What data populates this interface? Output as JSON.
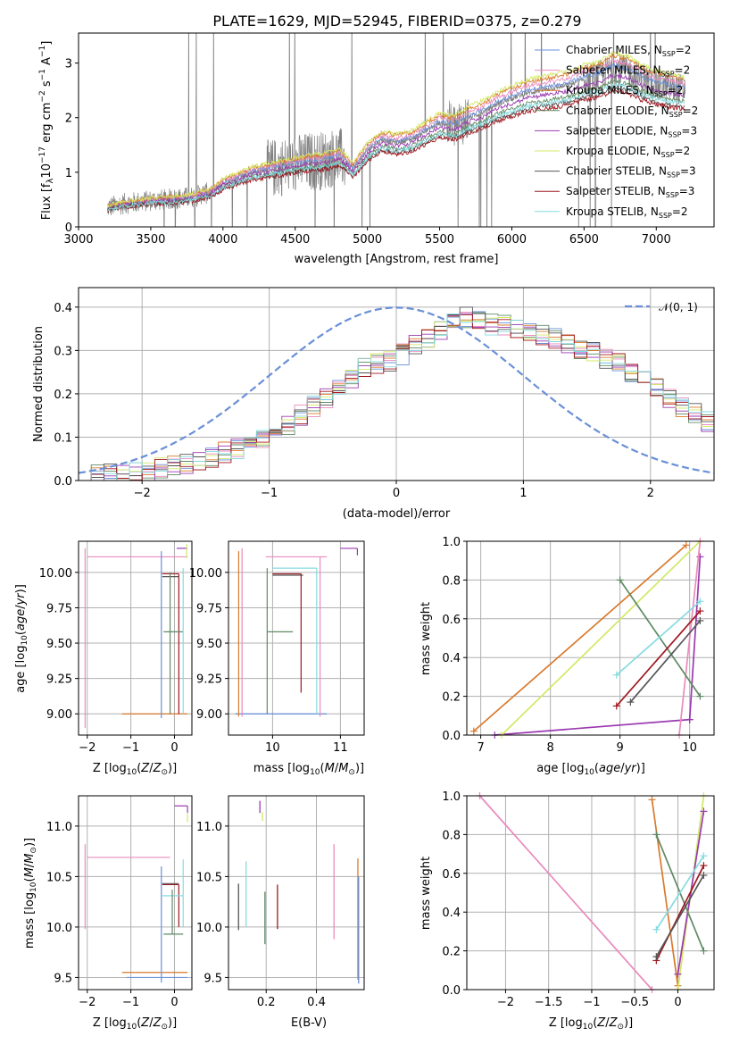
{
  "figure": {
    "title": "PLATE=1629, MJD=52945, FIBERID=0375, z=0.279"
  },
  "colors": {
    "Chabrier MILES": "#6a8fd8",
    "Salpeter MILES": "#e98bbd",
    "Kroupa MILES": "#d97a2d",
    "Chabrier ELODIE": "#5f8a64",
    "Salpeter ELODIE": "#9a3ab0",
    "Kroupa ELODIE": "#d3e865",
    "Chabrier STELIB": "#555555",
    "Salpeter STELIB": "#a01820",
    "Kroupa STELIB": "#86dbe0",
    "data": "#808080",
    "normal": "#6a8fd8"
  },
  "chart_data": [
    {
      "id": "spectrum",
      "type": "line",
      "title": "PLATE=1629, MJD=52945, FIBERID=0375, z=0.279",
      "xlabel": "wavelength [Angstrom, rest frame]",
      "ylabel": "Flux [f_λ 10^-17 erg cm^-2 s^-1 A^-1]",
      "xlim": [
        3000,
        7400
      ],
      "ylim": [
        0,
        3.55
      ],
      "xticks": [
        3000,
        3500,
        4000,
        4500,
        5000,
        5500,
        6000,
        6500,
        7000
      ],
      "yticks": [
        0,
        1,
        2,
        3
      ],
      "legend_position": "top-right",
      "grid": false,
      "legend": [
        "Chabrier MILES, N_SSP=2",
        "Salpeter MILES, N_SSP=2",
        "Kroupa MILES, N_SSP=2",
        "Chabrier ELODIE, N_SSP=2",
        "Salpeter ELODIE, N_SSP=3",
        "Kroupa ELODIE, N_SSP=2",
        "Chabrier STELIB, N_SSP=3",
        "Salpeter STELIB, N_SSP=3",
        "Kroupa STELIB, N_SSP=2"
      ],
      "continuum": {
        "x": [
          3200,
          3300,
          3400,
          3500,
          3600,
          3700,
          3800,
          3850,
          3900,
          3950,
          4000,
          4100,
          4200,
          4300,
          4400,
          4500,
          4600,
          4700,
          4800,
          4850,
          4900,
          5000,
          5100,
          5200,
          5300,
          5400,
          5500,
          5600,
          5700,
          5800,
          5900,
          6000,
          6100,
          6200,
          6300,
          6400,
          6500,
          6600,
          6700,
          6800,
          6900,
          7000,
          7100,
          7200
        ],
        "y": [
          0.35,
          0.42,
          0.45,
          0.48,
          0.5,
          0.52,
          0.55,
          0.6,
          0.62,
          0.7,
          0.8,
          0.9,
          1.0,
          1.05,
          1.1,
          1.15,
          1.2,
          1.22,
          1.3,
          1.2,
          1.05,
          1.4,
          1.6,
          1.55,
          1.6,
          1.75,
          1.9,
          1.85,
          2.0,
          2.1,
          2.25,
          2.35,
          2.45,
          2.5,
          2.55,
          2.6,
          2.7,
          2.75,
          2.9,
          2.85,
          2.7,
          2.6,
          2.55,
          2.5
        ]
      },
      "model_offsets": {
        "Chabrier MILES": 0.02,
        "Salpeter MILES": 0.05,
        "Kroupa MILES": 0.08,
        "Chabrier ELODIE": -0.08,
        "Salpeter ELODIE": -0.04,
        "Kroupa ELODIE": 0.1,
        "Chabrier STELIB": -0.12,
        "Salpeter STELIB": -0.14,
        "Kroupa STELIB": -0.1
      }
    },
    {
      "id": "residuals",
      "type": "line",
      "xlabel": "(data-model)/error",
      "ylabel": "Normed distribution",
      "xlim": [
        -2.5,
        2.5
      ],
      "ylim": [
        0,
        0.445
      ],
      "xticks": [
        -2,
        -1,
        0,
        1,
        2
      ],
      "yticks": [
        0.0,
        0.1,
        0.2,
        0.3,
        0.4
      ],
      "grid": true,
      "legend": [
        "𝒩(0, 1)"
      ],
      "legend_position": "top-right",
      "normal_curve": {
        "mu": 0,
        "sigma": 1,
        "style": "dashed"
      },
      "histogram_shape": {
        "x": [
          -2.5,
          -2.0,
          -1.5,
          -1.0,
          -0.5,
          -0.25,
          0.0,
          0.25,
          0.5,
          0.75,
          1.0,
          1.25,
          1.5,
          1.75,
          2.0,
          2.25,
          2.5
        ],
        "y": [
          0.01,
          0.02,
          0.05,
          0.1,
          0.2,
          0.26,
          0.28,
          0.33,
          0.38,
          0.36,
          0.35,
          0.33,
          0.3,
          0.27,
          0.22,
          0.17,
          0.13
        ]
      }
    },
    {
      "id": "age-vs-Z",
      "type": "scatter",
      "xlabel": "Z [log10(Z/Z⊙)]",
      "ylabel": "age  [log10(age/yr)]",
      "xlim": [
        -2.2,
        0.4
      ],
      "ylim": [
        8.85,
        10.22
      ],
      "xticks": [
        -2,
        -1,
        0
      ],
      "yticks": [
        9.0,
        9.25,
        9.5,
        9.75,
        10.0
      ],
      "grid": true
    },
    {
      "id": "age-vs-mass",
      "type": "scatter",
      "xlabel": "mass [log10(M/M⊙)]",
      "xlim": [
        9.35,
        11.35
      ],
      "ylim": [
        8.85,
        10.22
      ],
      "xticks": [
        10,
        11
      ],
      "yticks": [
        9.0,
        9.25,
        9.5,
        9.75,
        10.0
      ],
      "grid": true
    },
    {
      "id": "weight-vs-age",
      "type": "line",
      "xlabel": "age  [log10(age/yr)]",
      "ylabel": "mass weight",
      "xlim": [
        6.8,
        10.35
      ],
      "ylim": [
        0,
        1
      ],
      "xticks": [
        7,
        8,
        9,
        10
      ],
      "yticks": [
        0.0,
        0.2,
        0.4,
        0.6,
        0.8,
        1.0
      ],
      "grid": true,
      "series": [
        {
          "key": "Kroupa MILES",
          "x": [
            6.9,
            9.95
          ],
          "y": [
            0.02,
            0.98
          ]
        },
        {
          "key": "Salpeter ELODIE",
          "x": [
            7.2,
            10.0
          ],
          "y": [
            0.0,
            0.08
          ]
        },
        {
          "key": "Salpeter ELODIE b",
          "x": [
            10.0,
            10.15
          ],
          "y": [
            0.08,
            0.92
          ]
        },
        {
          "key": "Kroupa ELODIE",
          "x": [
            7.3,
            10.15
          ],
          "y": [
            0.0,
            1.0
          ]
        },
        {
          "key": "Salpeter MILES",
          "x": [
            9.85,
            10.15
          ],
          "y": [
            0.0,
            1.0
          ]
        },
        {
          "key": "Chabrier ELODIE",
          "x": [
            9.0,
            10.15
          ],
          "y": [
            0.8,
            0.2
          ]
        },
        {
          "key": "Kroupa STELIB",
          "x": [
            8.95,
            10.15
          ],
          "y": [
            0.31,
            0.69
          ]
        },
        {
          "key": "Salpeter STELIB",
          "x": [
            8.95,
            10.15
          ],
          "y": [
            0.15,
            0.64
          ]
        },
        {
          "key": "Chabrier STELIB",
          "x": [
            9.15,
            10.15
          ],
          "y": [
            0.17,
            0.59
          ]
        }
      ]
    },
    {
      "id": "mass-vs-Z",
      "type": "scatter",
      "xlabel": "Z [log10(Z/Z⊙)]",
      "ylabel": "mass [log10(M/M⊙)]",
      "xlim": [
        -2.2,
        0.4
      ],
      "ylim": [
        9.38,
        11.3
      ],
      "xticks": [
        -2,
        -1,
        0
      ],
      "yticks": [
        9.5,
        10.0,
        10.5,
        11.0
      ],
      "grid": true
    },
    {
      "id": "mass-vs-ebv",
      "type": "scatter",
      "xlabel": "E(B-V)",
      "xlim": [
        0.05,
        0.59
      ],
      "ylim": [
        9.38,
        11.3
      ],
      "xticks": [
        0.2,
        0.4
      ],
      "yticks": [
        9.5,
        10.0,
        10.5,
        11.0
      ],
      "grid": true,
      "series": [
        {
          "key": "Chabrier STELIB",
          "x": 0.09,
          "y": [
            9.97,
            10.43
          ]
        },
        {
          "key": "Kroupa STELIB",
          "x": 0.12,
          "y": [
            10.0,
            10.65
          ]
        },
        {
          "key": "Chabrier ELODIE",
          "x": 0.195,
          "y": [
            9.83,
            10.35
          ]
        },
        {
          "key": "Salpeter STELIB",
          "x": 0.245,
          "y": [
            9.98,
            10.42
          ]
        },
        {
          "key": "Salpeter ELODIE",
          "x": 0.175,
          "y": [
            11.13,
            11.25
          ]
        },
        {
          "key": "Kroupa ELODIE",
          "x": 0.185,
          "y": [
            11.05,
            11.14
          ]
        },
        {
          "key": "Salpeter MILES",
          "x": 0.47,
          "y": [
            9.88,
            10.82
          ]
        },
        {
          "key": "Kroupa MILES",
          "x": 0.565,
          "y": [
            9.48,
            10.68
          ]
        },
        {
          "key": "Chabrier MILES",
          "x": 0.568,
          "y": [
            9.44,
            10.5
          ]
        }
      ]
    },
    {
      "id": "weight-vs-Z",
      "type": "line",
      "xlabel": "Z [log10(Z/Z⊙)]",
      "ylabel": "mass weight",
      "xlim": [
        -2.45,
        0.42
      ],
      "ylim": [
        0,
        1
      ],
      "xticks": [
        -2.0,
        -1.5,
        -1.0,
        -0.5,
        0.0
      ],
      "yticks": [
        0.0,
        0.2,
        0.4,
        0.6,
        0.8,
        1.0
      ],
      "grid": true,
      "series": [
        {
          "key": "Salpeter MILES",
          "x": [
            -2.3,
            -0.3
          ],
          "y": [
            1.0,
            0.0
          ]
        },
        {
          "key": "Kroupa MILES",
          "x": [
            -0.3,
            0.0
          ],
          "y": [
            0.98,
            0.02
          ]
        },
        {
          "key": "Kroupa ELODIE",
          "x": [
            0.0,
            0.3
          ],
          "y": [
            0.0,
            1.0
          ]
        },
        {
          "key": "Salpeter ELODIE",
          "x": [
            0.0,
            0.3
          ],
          "y": [
            0.08,
            0.92
          ]
        },
        {
          "key": "Chabrier ELODIE",
          "x": [
            -0.25,
            0.3
          ],
          "y": [
            0.8,
            0.2
          ]
        },
        {
          "key": "Kroupa STELIB",
          "x": [
            -0.25,
            0.3
          ],
          "y": [
            0.31,
            0.69
          ]
        },
        {
          "key": "Salpeter STELIB",
          "x": [
            -0.25,
            0.3
          ],
          "y": [
            0.15,
            0.64
          ]
        },
        {
          "key": "Chabrier STELIB",
          "x": [
            -0.25,
            0.3
          ],
          "y": [
            0.17,
            0.59
          ]
        }
      ]
    }
  ]
}
